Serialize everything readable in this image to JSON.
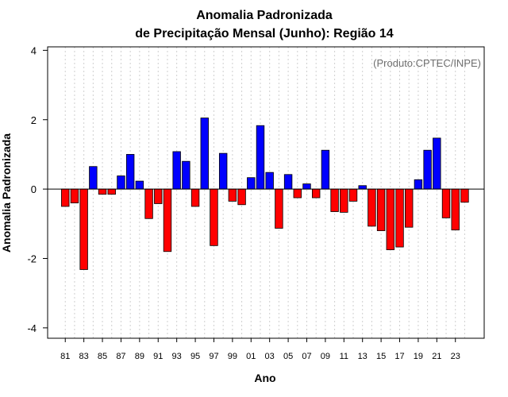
{
  "chart_data": {
    "type": "bar",
    "title_line1": "Anomalia Padronizada",
    "title_line2": "de Precipitação Mensal (Junho): Região 14",
    "xlabel": "Ano",
    "ylabel": "Anomalia Padronizada",
    "credit": "(Produto:CPTEC/INPE)",
    "ylim": [
      -4.3,
      4.1
    ],
    "yticks": [
      -4,
      -2,
      0,
      2,
      4
    ],
    "ytick_labels": [
      "-4",
      "-2",
      "0",
      "2",
      "4"
    ],
    "grid": "vertical dotted",
    "positive_color": "#0000ff",
    "negative_color": "#ff0000",
    "categories": [
      "81",
      "82",
      "83",
      "84",
      "85",
      "86",
      "87",
      "88",
      "89",
      "90",
      "91",
      "92",
      "93",
      "94",
      "95",
      "96",
      "97",
      "98",
      "99",
      "00",
      "01",
      "02",
      "03",
      "04",
      "05",
      "06",
      "07",
      "08",
      "09",
      "10",
      "11",
      "12",
      "13",
      "14",
      "15",
      "16",
      "17",
      "18",
      "19",
      "20",
      "21",
      "22",
      "23",
      "24"
    ],
    "xtick_labels": [
      "81",
      "83",
      "85",
      "87",
      "89",
      "91",
      "93",
      "95",
      "97",
      "99",
      "01",
      "03",
      "05",
      "07",
      "09",
      "11",
      "13",
      "15",
      "17",
      "19",
      "21",
      "23"
    ],
    "values": [
      -0.5,
      -0.4,
      -2.32,
      0.65,
      -0.15,
      -0.15,
      0.38,
      1.0,
      0.23,
      -0.85,
      -0.42,
      -1.8,
      1.08,
      0.8,
      -0.5,
      2.05,
      -1.63,
      1.03,
      -0.35,
      -0.45,
      0.33,
      1.83,
      0.48,
      -1.13,
      0.42,
      -0.25,
      0.15,
      -0.25,
      1.12,
      -0.65,
      -0.67,
      -0.35,
      0.1,
      -1.07,
      -1.2,
      -1.75,
      -1.67,
      -1.1,
      0.27,
      1.12,
      1.47,
      -0.83,
      -1.18,
      -0.38
    ]
  }
}
